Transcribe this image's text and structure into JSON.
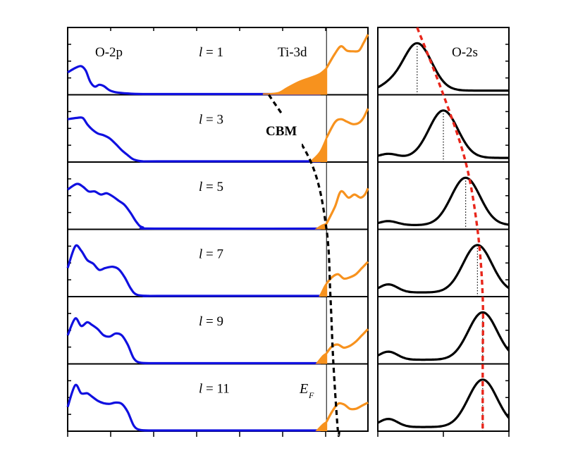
{
  "colors": {
    "o2p": "#1010e0",
    "ti3d": "#f7921e",
    "ti3d_fill": "#f7921e",
    "o2s": "#000000",
    "cbm": "#000000",
    "o2s_trend": "#e8261b",
    "axis": "#000000"
  },
  "labels": {
    "o2p": "O-2p",
    "ti3d": "Ti-3d",
    "o2s": "O-2s",
    "cbm": "CBM",
    "ef_main": "E",
    "ef_sub": "F",
    "l_prefix": "l",
    "l_eq": " = "
  },
  "chart_data": [
    {
      "type": "line",
      "name": "left-panel",
      "xlim": [
        0,
        1
      ],
      "fermi_level_x": 0.862,
      "panels": [
        {
          "l": "1",
          "o2p": [
            [
              0,
              0.35
            ],
            [
              0.025,
              0.42
            ],
            [
              0.045,
              0.45
            ],
            [
              0.06,
              0.38
            ],
            [
              0.075,
              0.2
            ],
            [
              0.09,
              0.12
            ],
            [
              0.105,
              0.15
            ],
            [
              0.12,
              0.13
            ],
            [
              0.14,
              0.06
            ],
            [
              0.16,
              0.03
            ],
            [
              0.2,
              0.01
            ],
            [
              0.25,
              0
            ],
            [
              0.3,
              0
            ]
          ],
          "ti3d_filled": [
            [
              0.65,
              0
            ],
            [
              0.7,
              0.02
            ],
            [
              0.73,
              0.1
            ],
            [
              0.77,
              0.2
            ],
            [
              0.81,
              0.27
            ],
            [
              0.84,
              0.33
            ],
            [
              0.862,
              0.42
            ]
          ],
          "ti3d": [
            [
              0.862,
              0.42
            ],
            [
              0.89,
              0.65
            ],
            [
              0.91,
              0.77
            ],
            [
              0.93,
              0.7
            ],
            [
              0.95,
              0.69
            ],
            [
              0.97,
              0.7
            ],
            [
              0.985,
              0.82
            ],
            [
              1,
              0.96
            ]
          ],
          "cbm_x": 0.67,
          "o2s_peak_x": 0.3
        },
        {
          "l": "3",
          "o2p": [
            [
              0,
              0.68
            ],
            [
              0.03,
              0.7
            ],
            [
              0.05,
              0.7
            ],
            [
              0.065,
              0.6
            ],
            [
              0.08,
              0.52
            ],
            [
              0.1,
              0.45
            ],
            [
              0.12,
              0.42
            ],
            [
              0.14,
              0.37
            ],
            [
              0.16,
              0.28
            ],
            [
              0.18,
              0.18
            ],
            [
              0.2,
              0.1
            ],
            [
              0.22,
              0.03
            ],
            [
              0.25,
              0
            ],
            [
              0.3,
              0
            ]
          ],
          "ti3d_filled": [
            [
              0.81,
              0
            ],
            [
              0.84,
              0.15
            ],
            [
              0.862,
              0.38
            ]
          ],
          "ti3d": [
            [
              0.862,
              0.38
            ],
            [
              0.89,
              0.63
            ],
            [
              0.91,
              0.68
            ],
            [
              0.93,
              0.64
            ],
            [
              0.95,
              0.6
            ],
            [
              0.97,
              0.62
            ],
            [
              0.985,
              0.7
            ],
            [
              1,
              0.85
            ]
          ],
          "cbm_x": 0.81,
          "o2s_peak_x": 0.5
        },
        {
          "l": "5",
          "o2p": [
            [
              0,
              0.63
            ],
            [
              0.03,
              0.72
            ],
            [
              0.05,
              0.68
            ],
            [
              0.07,
              0.6
            ],
            [
              0.09,
              0.6
            ],
            [
              0.11,
              0.55
            ],
            [
              0.13,
              0.57
            ],
            [
              0.15,
              0.52
            ],
            [
              0.17,
              0.45
            ],
            [
              0.19,
              0.38
            ],
            [
              0.21,
              0.25
            ],
            [
              0.23,
              0.1
            ],
            [
              0.25,
              0.02
            ],
            [
              0.3,
              0
            ]
          ],
          "ti3d_filled": [
            [
              0.83,
              0
            ],
            [
              0.845,
              0.05
            ],
            [
              0.862,
              0.08
            ]
          ],
          "ti3d": [
            [
              0.862,
              0.08
            ],
            [
              0.89,
              0.35
            ],
            [
              0.91,
              0.6
            ],
            [
              0.935,
              0.5
            ],
            [
              0.955,
              0.55
            ],
            [
              0.975,
              0.5
            ],
            [
              0.99,
              0.55
            ],
            [
              1,
              0.65
            ]
          ],
          "cbm_x": 0.862,
          "o2s_peak_x": 0.67
        },
        {
          "l": "7",
          "o2p": [
            [
              0,
              0.45
            ],
            [
              0.025,
              0.8
            ],
            [
              0.045,
              0.73
            ],
            [
              0.065,
              0.58
            ],
            [
              0.085,
              0.52
            ],
            [
              0.105,
              0.42
            ],
            [
              0.125,
              0.45
            ],
            [
              0.15,
              0.47
            ],
            [
              0.17,
              0.43
            ],
            [
              0.19,
              0.3
            ],
            [
              0.21,
              0.12
            ],
            [
              0.23,
              0.02
            ],
            [
              0.27,
              0
            ],
            [
              0.3,
              0
            ]
          ],
          "ti3d_filled": [
            [
              0.84,
              0
            ],
            [
              0.855,
              0.15
            ],
            [
              0.862,
              0.2
            ]
          ],
          "ti3d": [
            [
              0.862,
              0.2
            ],
            [
              0.88,
              0.3
            ],
            [
              0.9,
              0.35
            ],
            [
              0.92,
              0.28
            ],
            [
              0.94,
              0.3
            ],
            [
              0.96,
              0.35
            ],
            [
              0.98,
              0.45
            ],
            [
              1,
              0.55
            ]
          ],
          "cbm_x": 0.875,
          "o2s_peak_x": 0.76
        },
        {
          "l": "9",
          "o2p": [
            [
              0,
              0.45
            ],
            [
              0.025,
              0.72
            ],
            [
              0.045,
              0.6
            ],
            [
              0.065,
              0.66
            ],
            [
              0.08,
              0.62
            ],
            [
              0.1,
              0.55
            ],
            [
              0.12,
              0.45
            ],
            [
              0.14,
              0.43
            ],
            [
              0.16,
              0.48
            ],
            [
              0.18,
              0.45
            ],
            [
              0.2,
              0.3
            ],
            [
              0.22,
              0.08
            ],
            [
              0.24,
              0.01
            ],
            [
              0.28,
              0
            ],
            [
              0.3,
              0
            ]
          ],
          "ti3d_filled": [
            [
              0.83,
              0
            ],
            [
              0.85,
              0.12
            ],
            [
              0.862,
              0.16
            ]
          ],
          "ti3d": [
            [
              0.862,
              0.16
            ],
            [
              0.88,
              0.27
            ],
            [
              0.9,
              0.3
            ],
            [
              0.92,
              0.25
            ],
            [
              0.94,
              0.28
            ],
            [
              0.96,
              0.35
            ],
            [
              0.98,
              0.45
            ],
            [
              1,
              0.55
            ]
          ],
          "cbm_x": 0.885,
          "o2s_peak_x": 0.8
        },
        {
          "l": "11",
          "o2p": [
            [
              0,
              0.38
            ],
            [
              0.025,
              0.73
            ],
            [
              0.045,
              0.6
            ],
            [
              0.065,
              0.6
            ],
            [
              0.08,
              0.55
            ],
            [
              0.1,
              0.48
            ],
            [
              0.12,
              0.44
            ],
            [
              0.14,
              0.43
            ],
            [
              0.16,
              0.45
            ],
            [
              0.18,
              0.43
            ],
            [
              0.2,
              0.3
            ],
            [
              0.22,
              0.08
            ],
            [
              0.24,
              0.01
            ],
            [
              0.28,
              0
            ],
            [
              0.3,
              0
            ]
          ],
          "ti3d_filled": [
            [
              0.83,
              0
            ],
            [
              0.85,
              0.1
            ],
            [
              0.862,
              0.14
            ]
          ],
          "ti3d": [
            [
              0.862,
              0.14
            ],
            [
              0.88,
              0.3
            ],
            [
              0.9,
              0.43
            ],
            [
              0.92,
              0.42
            ],
            [
              0.94,
              0.35
            ],
            [
              0.96,
              0.35
            ],
            [
              0.98,
              0.4
            ],
            [
              1,
              0.45
            ]
          ],
          "cbm_x": 0.9,
          "o2s_peak_x": 0.8
        }
      ]
    }
  ]
}
